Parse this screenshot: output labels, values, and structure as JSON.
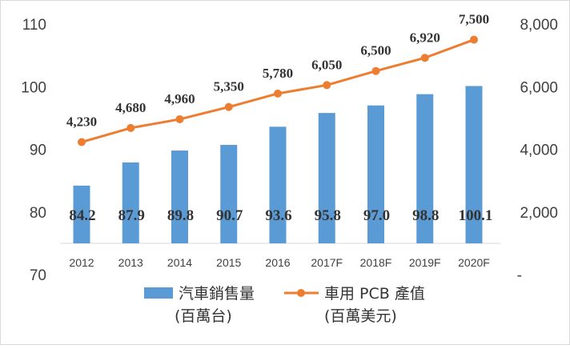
{
  "chart_data": {
    "type": "bar",
    "categories": [
      "2012",
      "2013",
      "2014",
      "2015",
      "2016",
      "2017F",
      "2018F",
      "2019F",
      "2020F"
    ],
    "series": [
      {
        "name": "汽車銷售量",
        "unit": "(百萬台)",
        "type": "bar",
        "axis": "left",
        "color": "#5b9bd5",
        "values": [
          84.2,
          87.9,
          89.8,
          90.7,
          93.6,
          95.8,
          97.0,
          98.8,
          100.1
        ],
        "labels": [
          "84.2",
          "87.9",
          "89.8",
          "90.7",
          "93.6",
          "95.8",
          "97.0",
          "98.8",
          "100.1"
        ]
      },
      {
        "name": "車用 PCB 產值",
        "unit": "(百萬美元)",
        "type": "line",
        "axis": "right",
        "color": "#ed7d31",
        "values": [
          4230,
          4680,
          4960,
          5350,
          5780,
          6050,
          6500,
          6920,
          7500
        ],
        "labels": [
          "4,230",
          "4,680",
          "4,960",
          "5,350",
          "5,780",
          "6,050",
          "6,500",
          "6,920",
          "7,500"
        ]
      }
    ],
    "y_left": {
      "min": 70,
      "max": 110,
      "ticks": [
        "70",
        "80",
        "90",
        "100",
        "110"
      ]
    },
    "y_right": {
      "min": 0,
      "max": 8000,
      "ticks": [
        "-",
        "2,000",
        "4,000",
        "6,000",
        "8,000"
      ]
    },
    "grid": false,
    "legend_position": "bottom"
  }
}
